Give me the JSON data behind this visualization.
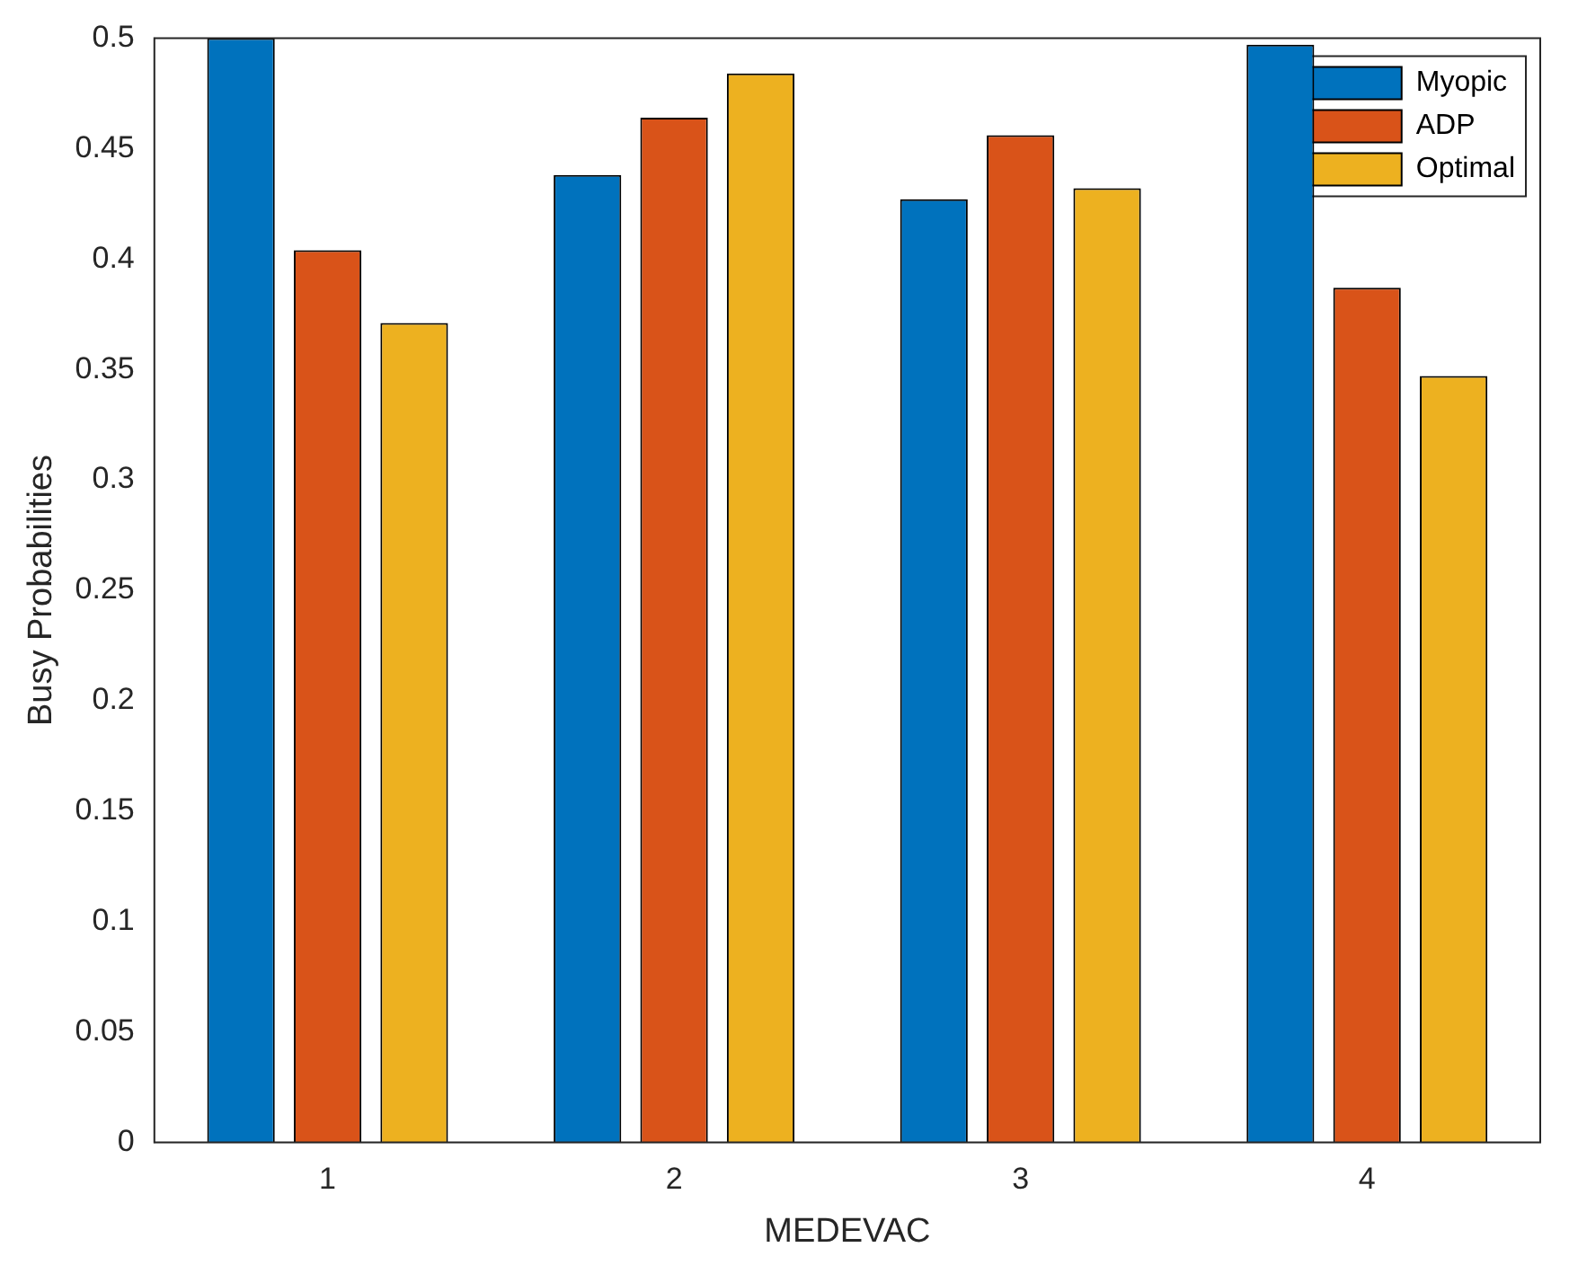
{
  "chart_data": {
    "type": "bar",
    "xlabel": "MEDEVAC",
    "ylabel": "Busy Probabilities",
    "categories": [
      "1",
      "2",
      "3",
      "4"
    ],
    "series": [
      {
        "name": "Myopic",
        "color": "#0072bd",
        "values": [
          0.5,
          0.438,
          0.427,
          0.497
        ]
      },
      {
        "name": "ADP",
        "color": "#d95319",
        "values": [
          0.404,
          0.464,
          0.456,
          0.387
        ]
      },
      {
        "name": "Optimal",
        "color": "#edb120",
        "values": [
          0.371,
          0.484,
          0.432,
          0.347
        ]
      }
    ],
    "ylim": [
      0,
      0.5
    ],
    "yticks": [
      0,
      0.05,
      0.1,
      0.15,
      0.2,
      0.25,
      0.3,
      0.35,
      0.4,
      0.45,
      0.5
    ],
    "grid": false,
    "legend": "top right"
  }
}
